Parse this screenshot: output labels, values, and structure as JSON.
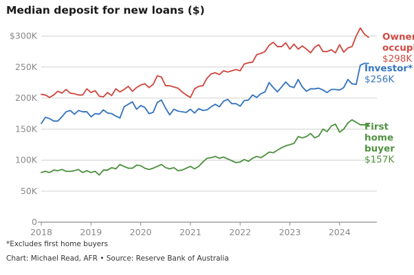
{
  "title": "Median deposit for new loans ($)",
  "footnote": "*Excludes first home buyers",
  "source": "Chart: Michael Read, AFR • Source: Reserve Bank of Australia",
  "colors": {
    "owner": "#cf4a42",
    "investor": "#3575c0",
    "first": "#4f9240",
    "grid": "#d0d0d0",
    "axis": "#8a8a8a",
    "tick": "#888888"
  },
  "chart_data": {
    "type": "line",
    "ylim": [
      0,
      315000
    ],
    "xlim": [
      2018.0,
      2024.75
    ],
    "y_ticks": [
      {
        "value": 0,
        "label": "0"
      },
      {
        "value": 50000,
        "label": "50K"
      },
      {
        "value": 100000,
        "label": "100K"
      },
      {
        "value": 150000,
        "label": "150K"
      },
      {
        "value": 200000,
        "label": "200K"
      },
      {
        "value": 250000,
        "label": "250K"
      },
      {
        "value": 300000,
        "label": "$300K"
      }
    ],
    "x_ticks": [
      {
        "value": 2018,
        "label": "2018"
      },
      {
        "value": 2019,
        "label": "2019"
      },
      {
        "value": 2020,
        "label": "2020"
      },
      {
        "value": 2021,
        "label": "2021"
      },
      {
        "value": 2022,
        "label": "2022"
      },
      {
        "value": 2023,
        "label": "2023"
      },
      {
        "value": 2024,
        "label": "2024"
      }
    ],
    "grid": true,
    "series": [
      {
        "key": "owner",
        "name_lines": [
          "Owner-",
          "occupier*"
        ],
        "end_label": "$298K",
        "x": [
          2018.0,
          2018.083,
          2018.167,
          2018.25,
          2018.333,
          2018.417,
          2018.5,
          2018.583,
          2018.667,
          2018.75,
          2018.833,
          2018.917,
          2019.0,
          2019.083,
          2019.167,
          2019.25,
          2019.333,
          2019.417,
          2019.5,
          2019.583,
          2019.667,
          2019.75,
          2019.833,
          2019.917,
          2020.0,
          2020.083,
          2020.167,
          2020.25,
          2020.333,
          2020.417,
          2020.5,
          2020.583,
          2020.667,
          2020.75,
          2020.833,
          2020.917,
          2021.0,
          2021.083,
          2021.167,
          2021.25,
          2021.333,
          2021.417,
          2021.5,
          2021.583,
          2021.667,
          2021.75,
          2021.833,
          2021.917,
          2022.0,
          2022.083,
          2022.167,
          2022.25,
          2022.333,
          2022.417,
          2022.5,
          2022.583,
          2022.667,
          2022.75,
          2022.833,
          2022.917,
          2023.0,
          2023.083,
          2023.167,
          2023.25,
          2023.333,
          2023.417,
          2023.5,
          2023.583,
          2023.667,
          2023.75,
          2023.833,
          2023.917,
          2024.0,
          2024.083,
          2024.167,
          2024.25,
          2024.333,
          2024.417,
          2024.5,
          2024.583
        ],
        "values": [
          206000,
          205000,
          201000,
          205000,
          211000,
          208000,
          214000,
          208000,
          207000,
          205000,
          205000,
          215000,
          209000,
          212000,
          203000,
          202000,
          209000,
          204000,
          215000,
          210000,
          214000,
          219000,
          211000,
          217000,
          221000,
          223000,
          217000,
          222000,
          236000,
          234000,
          220000,
          220000,
          218000,
          216000,
          210000,
          205000,
          201000,
          215000,
          219000,
          220000,
          232000,
          239000,
          241000,
          238000,
          244000,
          242000,
          244000,
          246000,
          244000,
          255000,
          257000,
          258000,
          270000,
          272000,
          275000,
          285000,
          290000,
          283000,
          283000,
          289000,
          279000,
          287000,
          279000,
          284000,
          279000,
          273000,
          282000,
          286000,
          275000,
          275000,
          278000,
          273000,
          286000,
          274000,
          281000,
          283000,
          300000,
          313000,
          303000,
          298000
        ]
      },
      {
        "key": "investor",
        "name_lines": [
          "Investor*"
        ],
        "end_label": "$256K",
        "x": [
          2018.0,
          2018.083,
          2018.167,
          2018.25,
          2018.333,
          2018.417,
          2018.5,
          2018.583,
          2018.667,
          2018.75,
          2018.833,
          2018.917,
          2019.0,
          2019.083,
          2019.167,
          2019.25,
          2019.333,
          2019.417,
          2019.5,
          2019.583,
          2019.667,
          2019.75,
          2019.833,
          2019.917,
          2020.0,
          2020.083,
          2020.167,
          2020.25,
          2020.333,
          2020.417,
          2020.5,
          2020.583,
          2020.667,
          2020.75,
          2020.833,
          2020.917,
          2021.0,
          2021.083,
          2021.167,
          2021.25,
          2021.333,
          2021.417,
          2021.5,
          2021.583,
          2021.667,
          2021.75,
          2021.833,
          2021.917,
          2022.0,
          2022.083,
          2022.167,
          2022.25,
          2022.333,
          2022.417,
          2022.5,
          2022.583,
          2022.667,
          2022.75,
          2022.833,
          2022.917,
          2023.0,
          2023.083,
          2023.167,
          2023.25,
          2023.333,
          2023.417,
          2023.5,
          2023.583,
          2023.667,
          2023.75,
          2023.833,
          2023.917,
          2024.0,
          2024.083,
          2024.167,
          2024.25,
          2024.333,
          2024.417,
          2024.5,
          2024.583
        ],
        "values": [
          159000,
          169000,
          167000,
          163000,
          163000,
          170000,
          178000,
          180000,
          174000,
          180000,
          178000,
          178000,
          170000,
          175000,
          174000,
          181000,
          176000,
          175000,
          171000,
          168000,
          186000,
          190000,
          194000,
          182000,
          188000,
          185000,
          175000,
          177000,
          193000,
          197000,
          184000,
          173000,
          182000,
          179000,
          178000,
          177000,
          182000,
          176000,
          183000,
          180000,
          181000,
          186000,
          190000,
          186000,
          195000,
          198000,
          191000,
          191000,
          187000,
          196000,
          197000,
          205000,
          201000,
          207000,
          210000,
          225000,
          217000,
          210000,
          218000,
          226000,
          219000,
          217000,
          230000,
          218000,
          211000,
          215000,
          215000,
          216000,
          213000,
          209000,
          214000,
          214000,
          213000,
          217000,
          230000,
          223000,
          222000,
          253000,
          256000,
          256000
        ]
      },
      {
        "key": "first",
        "name_lines": [
          "First",
          "home",
          "buyer"
        ],
        "end_label": "$157K",
        "x": [
          2018.0,
          2018.083,
          2018.167,
          2018.25,
          2018.333,
          2018.417,
          2018.5,
          2018.583,
          2018.667,
          2018.75,
          2018.833,
          2018.917,
          2019.0,
          2019.083,
          2019.167,
          2019.25,
          2019.333,
          2019.417,
          2019.5,
          2019.583,
          2019.667,
          2019.75,
          2019.833,
          2019.917,
          2020.0,
          2020.083,
          2020.167,
          2020.25,
          2020.333,
          2020.417,
          2020.5,
          2020.583,
          2020.667,
          2020.75,
          2020.833,
          2020.917,
          2021.0,
          2021.083,
          2021.167,
          2021.25,
          2021.333,
          2021.417,
          2021.5,
          2021.583,
          2021.667,
          2021.75,
          2021.833,
          2021.917,
          2022.0,
          2022.083,
          2022.167,
          2022.25,
          2022.333,
          2022.417,
          2022.5,
          2022.583,
          2022.667,
          2022.75,
          2022.833,
          2022.917,
          2023.0,
          2023.083,
          2023.167,
          2023.25,
          2023.333,
          2023.417,
          2023.5,
          2023.583,
          2023.667,
          2023.75,
          2023.833,
          2023.917,
          2024.0,
          2024.083,
          2024.167,
          2024.25,
          2024.333,
          2024.417,
          2024.5,
          2024.583
        ],
        "values": [
          80000,
          82000,
          80000,
          84000,
          83000,
          85000,
          82000,
          82000,
          83000,
          85000,
          80000,
          83000,
          80000,
          82000,
          76000,
          84000,
          84000,
          88000,
          86000,
          93000,
          90000,
          87000,
          87000,
          92000,
          91000,
          87000,
          85000,
          87000,
          90000,
          93000,
          88000,
          86000,
          88000,
          83000,
          84000,
          87000,
          90000,
          86000,
          90000,
          97000,
          103000,
          104000,
          106000,
          103000,
          105000,
          102000,
          99000,
          96000,
          97000,
          101000,
          98000,
          103000,
          106000,
          104000,
          108000,
          113000,
          112000,
          116000,
          120000,
          123000,
          125000,
          127000,
          138000,
          136000,
          138000,
          143000,
          136000,
          139000,
          150000,
          146000,
          155000,
          158000,
          145000,
          150000,
          160000,
          165000,
          161000,
          157000,
          157000,
          157000
        ]
      }
    ]
  }
}
